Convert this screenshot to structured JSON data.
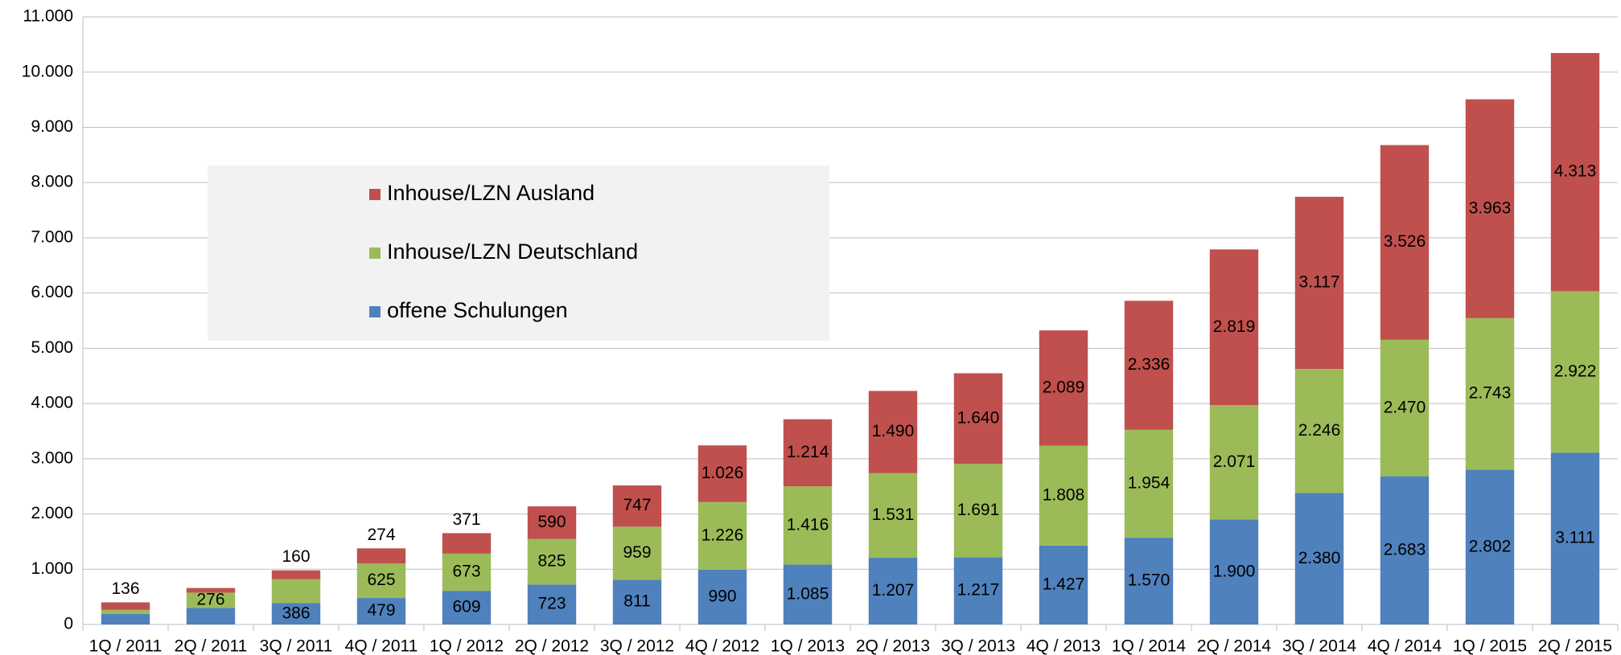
{
  "chart_data": {
    "type": "stacked_bar",
    "categories": [
      "1Q / 2011",
      "2Q / 2011",
      "3Q / 2011",
      "4Q / 2011",
      "1Q / 2012",
      "2Q / 2012",
      "3Q / 2012",
      "4Q / 2012",
      "1Q / 2013",
      "2Q / 2013",
      "3Q / 2013",
      "4Q / 2013",
      "1Q / 2014",
      "2Q / 2014",
      "3Q / 2014",
      "4Q / 2014",
      "1Q / 2015",
      "2Q / 2015"
    ],
    "series": [
      {
        "name": "offene Schulungen",
        "color": "#4f81bd",
        "values": [
          190,
          300,
          386,
          479,
          609,
          723,
          811,
          990,
          1085,
          1207,
          1217,
          1427,
          1570,
          1900,
          2380,
          2683,
          2802,
          3111
        ],
        "value_labels": [
          null,
          null,
          "386",
          "479",
          "609",
          "723",
          "811",
          "990",
          "1.085",
          "1.207",
          "1.217",
          "1.427",
          "1.570",
          "1.900",
          "2.380",
          "2.683",
          "2.802",
          "3.111"
        ]
      },
      {
        "name": "Inhouse/LZN Deutschland",
        "color": "#9bbb59",
        "values": [
          74,
          276,
          434,
          625,
          673,
          825,
          959,
          1226,
          1416,
          1531,
          1691,
          1808,
          1954,
          2071,
          2246,
          2470,
          2743,
          2922
        ],
        "value_labels": [
          null,
          "276",
          null,
          "625",
          "673",
          "825",
          "959",
          "1.226",
          "1.416",
          "1.531",
          "1.691",
          "1.808",
          "1.954",
          "2.071",
          "2.246",
          "2.470",
          "2.743",
          "2.922"
        ]
      },
      {
        "name": "Inhouse/LZN Ausland",
        "color": "#c0504d",
        "values": [
          136,
          84,
          160,
          274,
          371,
          590,
          747,
          1026,
          1214,
          1490,
          1640,
          2089,
          2336,
          2819,
          3117,
          3526,
          3963,
          4313
        ],
        "value_labels": [
          "136",
          null,
          "160",
          "274",
          "371",
          "590",
          "747",
          "1.026",
          "1.214",
          "1.490",
          "1.640",
          "2.089",
          "2.336",
          "2.819",
          "3.117",
          "3.526",
          "3.963",
          "4.313"
        ]
      }
    ],
    "ylim": [
      0,
      11000
    ],
    "yticks": [
      0,
      {
        "value": 1000,
        "label": "1.000"
      },
      {
        "value": 2000,
        "label": "2.000"
      },
      {
        "value": 3000,
        "label": "3.000"
      },
      {
        "value": 4000,
        "label": "4.000"
      },
      {
        "value": 5000,
        "label": "5.000"
      },
      {
        "value": 6000,
        "label": "6.000"
      },
      {
        "value": 7000,
        "label": "7.000"
      },
      {
        "value": 8000,
        "label": "8.000"
      },
      {
        "value": 9000,
        "label": "9.000"
      },
      {
        "value": 10000,
        "label": "10.000"
      },
      {
        "value": 11000,
        "label": "11.000"
      }
    ],
    "grid": true,
    "legend": "upper left"
  }
}
